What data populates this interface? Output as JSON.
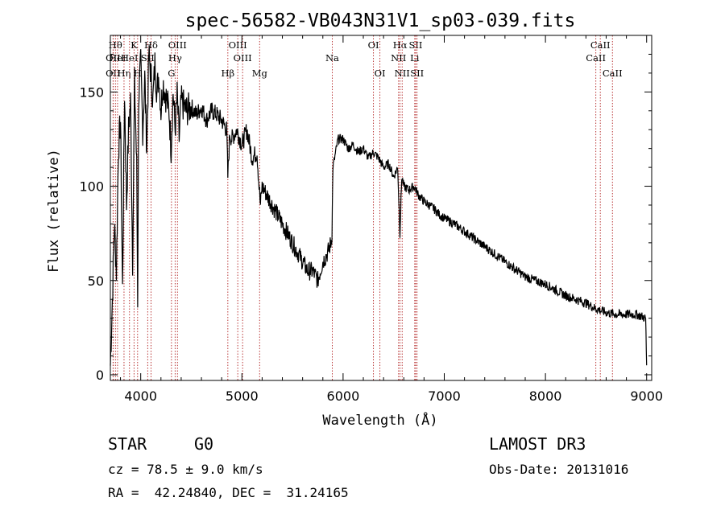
{
  "chart_data": {
    "type": "line",
    "title": "spec-56582-VB043N31V1_sp03-039.fits",
    "xlabel": "Wavelength (Å)",
    "ylabel": "Flux (relative)",
    "xlim": [
      3700,
      9050
    ],
    "ylim": [
      -3,
      180
    ],
    "x_ticks": [
      4000,
      5000,
      6000,
      7000,
      8000,
      9000
    ],
    "y_ticks": [
      0,
      50,
      100,
      150
    ],
    "series": [
      {
        "name": "flux",
        "x": [
          3700,
          3720,
          3740,
          3760,
          3780,
          3800,
          3820,
          3840,
          3860,
          3880,
          3900,
          3920,
          3940,
          3960,
          3970,
          3980,
          4000,
          4020,
          4040,
          4060,
          4080,
          4100,
          4120,
          4140,
          4160,
          4180,
          4200,
          4220,
          4240,
          4260,
          4280,
          4300,
          4320,
          4340,
          4360,
          4380,
          4400,
          4450,
          4500,
          4550,
          4600,
          4650,
          4700,
          4750,
          4800,
          4850,
          4861,
          4880,
          4900,
          4950,
          5000,
          5050,
          5100,
          5150,
          5170,
          5183,
          5200,
          5250,
          5300,
          5350,
          5400,
          5450,
          5500,
          5550,
          5600,
          5650,
          5700,
          5750,
          5800,
          5850,
          5880,
          5890,
          5900,
          5950,
          6000,
          6050,
          6100,
          6150,
          6200,
          6250,
          6300,
          6350,
          6400,
          6450,
          6500,
          6540,
          6562,
          6580,
          6600,
          6650,
          6700,
          6750,
          6800,
          6850,
          6900,
          6950,
          7000,
          7100,
          7200,
          7300,
          7400,
          7500,
          7600,
          7700,
          7800,
          7900,
          8000,
          8100,
          8200,
          8300,
          8400,
          8500,
          8600,
          8700,
          8800,
          8900,
          8950,
          8990,
          9000
        ],
        "y": [
          5,
          40,
          80,
          55,
          120,
          135,
          45,
          150,
          90,
          130,
          145,
          60,
          155,
          110,
          40,
          148,
          165,
          130,
          158,
          120,
          170,
          160,
          145,
          165,
          150,
          160,
          140,
          155,
          150,
          145,
          140,
          120,
          150,
          130,
          148,
          125,
          145,
          140,
          142,
          138,
          142,
          135,
          140,
          138,
          135,
          130,
          105,
          128,
          125,
          130,
          122,
          130,
          115,
          118,
          100,
          90,
          100,
          95,
          90,
          85,
          80,
          75,
          70,
          65,
          60,
          55,
          55,
          50,
          60,
          65,
          70,
          75,
          110,
          125,
          125,
          120,
          122,
          118,
          120,
          115,
          118,
          115,
          110,
          112,
          105,
          110,
          75,
          105,
          100,
          98,
          100,
          95,
          92,
          90,
          88,
          85,
          83,
          80,
          76,
          72,
          68,
          64,
          60,
          56,
          52,
          50,
          48,
          45,
          42,
          40,
          38,
          35,
          33,
          32,
          32,
          32,
          31,
          30,
          5
        ]
      }
    ],
    "lines": [
      {
        "name": "OII",
        "wl": 3727,
        "row": 2
      },
      {
        "name": "OII",
        "wl": 3727,
        "row": 3
      },
      {
        "name": "Hθ",
        "wl": 3750,
        "row": 1
      },
      {
        "name": "HeI",
        "wl": 3771,
        "row": 2
      },
      {
        "name": "Hη",
        "wl": 3835,
        "row": 3
      },
      {
        "name": "K",
        "wl": 3934,
        "row": 1
      },
      {
        "name": "H",
        "wl": 3969,
        "row": 3
      },
      {
        "name": "HeI",
        "wl": 3889,
        "row": 2
      },
      {
        "name": "Hδ",
        "wl": 4102,
        "row": 1
      },
      {
        "name": "SII",
        "wl": 4069,
        "row": 2
      },
      {
        "name": "G",
        "wl": 4304,
        "row": 3
      },
      {
        "name": "OIII",
        "wl": 4363,
        "row": 1
      },
      {
        "name": "Hγ",
        "wl": 4340,
        "row": 2
      },
      {
        "name": "Hβ",
        "wl": 4861,
        "row": 3
      },
      {
        "name": "OIII",
        "wl": 4959,
        "row": 1
      },
      {
        "name": "OIII",
        "wl": 5007,
        "row": 2
      },
      {
        "name": "Mg",
        "wl": 5175,
        "row": 3
      },
      {
        "name": "Na",
        "wl": 5893,
        "row": 2
      },
      {
        "name": "OI",
        "wl": 6300,
        "row": 1
      },
      {
        "name": "OI",
        "wl": 6364,
        "row": 3
      },
      {
        "name": "Hα",
        "wl": 6563,
        "row": 1
      },
      {
        "name": "NII",
        "wl": 6548,
        "row": 2
      },
      {
        "name": "NII",
        "wl": 6584,
        "row": 3
      },
      {
        "name": "SII",
        "wl": 6717,
        "row": 1
      },
      {
        "name": "SII",
        "wl": 6731,
        "row": 3
      },
      {
        "name": "Li",
        "wl": 6708,
        "row": 2
      },
      {
        "name": "CaII",
        "wl": 8542,
        "row": 1
      },
      {
        "name": "CaII",
        "wl": 8498,
        "row": 2
      },
      {
        "name": "CaII",
        "wl": 8662,
        "row": 3
      }
    ],
    "line_color": "#b22222"
  },
  "footer": {
    "class_label": "STAR",
    "subclass": "G0",
    "survey": "LAMOST DR3",
    "cz": "cz = 78.5 ± 9.0 km/s",
    "obsdate": "Obs-Date: 20131016",
    "radec": "RA =  42.24840, DEC =  31.24165"
  }
}
